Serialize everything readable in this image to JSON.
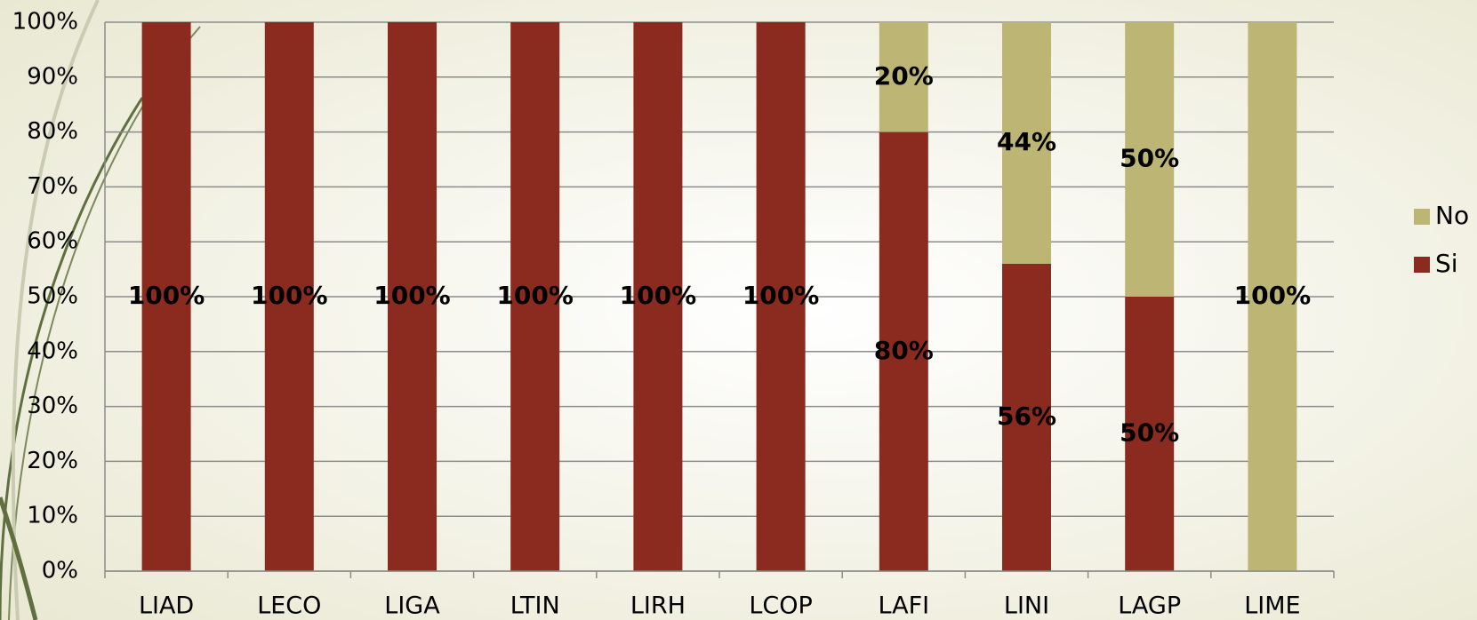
{
  "chart_data": {
    "type": "stacked_bar",
    "categories": [
      "LIAD",
      "LECO",
      "LIGA",
      "LTIN",
      "LIRH",
      "LCOP",
      "LAFI",
      "LINI",
      "LAGP",
      "LIME"
    ],
    "series": [
      {
        "name": "Si",
        "color": "#8b2a1e",
        "values": [
          100,
          100,
          100,
          100,
          100,
          100,
          80,
          56,
          50,
          0
        ],
        "value_labels": [
          "100%",
          "100%",
          "100%",
          "100%",
          "100%",
          "100%",
          "80%",
          "56%",
          "50%",
          null
        ]
      },
      {
        "name": "No",
        "color": "#bdb574",
        "values": [
          0,
          0,
          0,
          0,
          0,
          0,
          20,
          44,
          50,
          100
        ],
        "value_labels": [
          null,
          null,
          null,
          null,
          null,
          null,
          "20%",
          "44%",
          "50%",
          "100%"
        ]
      }
    ],
    "ylim": [
      0,
      100
    ],
    "yticks": [
      {
        "value": 0,
        "label": "0%"
      },
      {
        "value": 10,
        "label": "10%"
      },
      {
        "value": 20,
        "label": "20%"
      },
      {
        "value": 30,
        "label": "30%"
      },
      {
        "value": 40,
        "label": "40%"
      },
      {
        "value": 50,
        "label": "50%"
      },
      {
        "value": 60,
        "label": "60%"
      },
      {
        "value": 70,
        "label": "70%"
      },
      {
        "value": 80,
        "label": "80%"
      },
      {
        "value": 90,
        "label": "90%"
      },
      {
        "value": 100,
        "label": "100%"
      }
    ],
    "grid": true,
    "legend": "right"
  }
}
